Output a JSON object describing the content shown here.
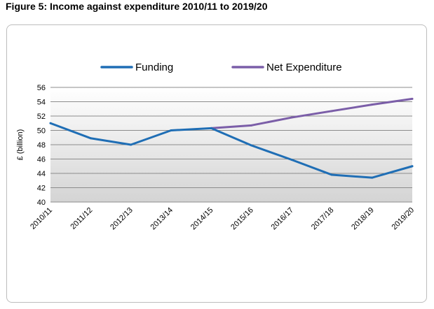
{
  "figure_title": "Figure 5: Income against expenditure 2010/11 to 2019/20",
  "chart_data": {
    "type": "line",
    "title": "Figure 5: Income against expenditure 2010/11 to 2019/20",
    "xlabel": "",
    "ylabel": "£ (billion)",
    "ylim": [
      40,
      56
    ],
    "yticks": [
      40,
      42,
      44,
      46,
      48,
      50,
      52,
      54,
      56
    ],
    "grid": true,
    "legend_position": "top",
    "categories": [
      "2010/11",
      "2011/12",
      "2012/13",
      "2013/14",
      "2014/15",
      "2015/16",
      "2016/17",
      "2017/18",
      "2018/19",
      "2019/20"
    ],
    "series": [
      {
        "name": "Funding",
        "color": "#1f6eb5",
        "values": [
          51.0,
          48.9,
          48.0,
          50.0,
          50.3,
          47.9,
          45.9,
          43.8,
          43.4,
          45.0
        ]
      },
      {
        "name": "Net Expenditure",
        "color": "#7b5ea8",
        "values": [
          null,
          null,
          null,
          null,
          50.3,
          50.7,
          51.8,
          52.7,
          53.6,
          54.4
        ]
      }
    ]
  }
}
